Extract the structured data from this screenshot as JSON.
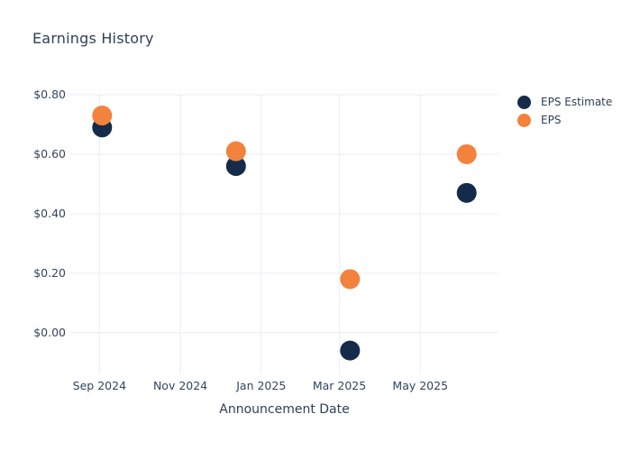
{
  "colors": {
    "background": "#ffffff",
    "grid": "#edf1f7",
    "title_text": "#2e4157",
    "tick_text": "#33455c",
    "navy": "#142b49",
    "orange": "#f2823c"
  },
  "chart_data": {
    "type": "scatter",
    "title": "Earnings History",
    "xlabel": "Announcement Date",
    "ylabel": "",
    "legend_position": "right-top",
    "grid": true,
    "x_domain": [
      "2024-08-10",
      "2025-06-29"
    ],
    "ylim": [
      -0.14,
      0.8
    ],
    "x_ticks": [
      {
        "date": "2024-09-01",
        "label": "Sep 2024"
      },
      {
        "date": "2024-11-01",
        "label": "Nov 2024"
      },
      {
        "date": "2025-01-01",
        "label": "Jan 2025"
      },
      {
        "date": "2025-03-01",
        "label": "Mar 2025"
      },
      {
        "date": "2025-05-01",
        "label": "May 2025"
      }
    ],
    "y_ticks": [
      {
        "value": 0.8,
        "label": "$0.80"
      },
      {
        "value": 0.6,
        "label": "$0.60"
      },
      {
        "value": 0.4,
        "label": "$0.40"
      },
      {
        "value": 0.2,
        "label": "$0.20"
      },
      {
        "value": 0.0,
        "label": "$0.00"
      }
    ],
    "marker_diameter": 22,
    "series": [
      {
        "name": "EPS Estimate",
        "color": "#142b49",
        "points": [
          {
            "x": "2024-09-03",
            "y": 0.69
          },
          {
            "x": "2024-12-13",
            "y": 0.56
          },
          {
            "x": "2025-03-09",
            "y": -0.06
          },
          {
            "x": "2025-06-05",
            "y": 0.47
          }
        ]
      },
      {
        "name": "EPS",
        "color": "#f2823c",
        "points": [
          {
            "x": "2024-09-03",
            "y": 0.73
          },
          {
            "x": "2024-12-13",
            "y": 0.61
          },
          {
            "x": "2025-03-09",
            "y": 0.18
          },
          {
            "x": "2025-06-05",
            "y": 0.6
          }
        ]
      }
    ]
  }
}
